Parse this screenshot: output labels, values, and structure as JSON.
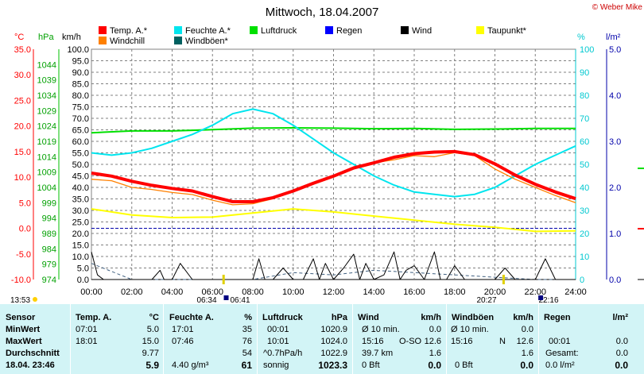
{
  "title": "Mittwoch, 18.04.2007",
  "copyright": "© Weber Mike",
  "axis_units": {
    "temp": "°C",
    "pressure": "hPa",
    "wind": "km/h",
    "humidity": "%",
    "rain": "l/m²"
  },
  "legend": [
    {
      "label": "Temp. A.*",
      "color": "#ff0000"
    },
    {
      "label": "Feuchte A.*",
      "color": "#00e5ee"
    },
    {
      "label": "Luftdruck",
      "color": "#00e000"
    },
    {
      "label": "Regen",
      "color": "#0000ff"
    },
    {
      "label": "Wind",
      "color": "#000000"
    },
    {
      "label": "Taupunkt*",
      "color": "#ffff00"
    },
    {
      "label": "Windchill",
      "color": "#ff8000"
    },
    {
      "label": "Windböen*",
      "color": "#006060"
    }
  ],
  "chart_data": {
    "type": "line",
    "title": "Mittwoch, 18.04.2007",
    "x_tick_labels": [
      "00:00",
      "02:00",
      "04:00",
      "06:00",
      "08:00",
      "10:00",
      "12:00",
      "14:00",
      "16:00",
      "18:00",
      "20:00",
      "22:00",
      "24:00"
    ],
    "axes": {
      "temp": {
        "unit": "°C",
        "range": [
          -10,
          35
        ],
        "ticks": [
          "35.0",
          "30.0",
          "25.0",
          "20.0",
          "15.0",
          "10.0",
          "5.0",
          "0.0",
          "-5.0",
          "-10.0"
        ]
      },
      "pressure": {
        "unit": "hPa",
        "range": [
          974,
          1049
        ],
        "ticks": [
          "1044",
          "1039",
          "1034",
          "1029",
          "1024",
          "1019",
          "1014",
          "1009",
          "1004",
          "999",
          "994",
          "989",
          "984",
          "979",
          "974"
        ]
      },
      "wind": {
        "unit": "km/h",
        "range": [
          0,
          100
        ],
        "ticks": [
          "100.0",
          "95.0",
          "90.0",
          "85.0",
          "80.0",
          "75.0",
          "70.0",
          "65.0",
          "60.0",
          "55.0",
          "50.0",
          "45.0",
          "40.0",
          "35.0",
          "30.0",
          "25.0",
          "20.0",
          "15.0",
          "10.0",
          "5.0",
          "0.0"
        ]
      },
      "humidity": {
        "unit": "%",
        "range": [
          0,
          100
        ],
        "ticks": [
          "100",
          "90",
          "80",
          "70",
          "60",
          "50",
          "40",
          "30",
          "20",
          "10",
          "0"
        ]
      },
      "rain": {
        "unit": "l/m²",
        "range": [
          0,
          5
        ],
        "ticks": [
          "5.0",
          "4.0",
          "3.0",
          "2.0",
          "1.0",
          "0.0"
        ]
      }
    },
    "grid": true,
    "reference_line": {
      "axis": "temp",
      "value": 0,
      "style": "dashed",
      "color": "#0000aa"
    },
    "series": [
      {
        "name": "Temp. A.*",
        "axis": "temp",
        "color": "#ff0000",
        "x": [
          0,
          1,
          2,
          3,
          4,
          5,
          6,
          7,
          8,
          9,
          10,
          11,
          12,
          13,
          14,
          15,
          16,
          17,
          18,
          19,
          20,
          21,
          22,
          23,
          24
        ],
        "y": [
          10.8,
          10.2,
          9.2,
          8.4,
          7.8,
          7.3,
          6.2,
          5.2,
          5.2,
          6.0,
          7.3,
          8.8,
          10.2,
          11.8,
          12.8,
          13.9,
          14.6,
          14.9,
          15.0,
          14.4,
          12.6,
          10.4,
          8.6,
          7.1,
          5.8
        ]
      },
      {
        "name": "Windchill",
        "axis": "temp",
        "color": "#ff8000",
        "x": [
          0,
          1,
          2,
          3,
          4,
          5,
          6,
          7,
          8,
          9,
          10,
          11,
          12,
          13,
          14,
          15,
          16,
          17,
          18,
          19,
          20,
          21,
          22,
          23,
          24
        ],
        "y": [
          9.6,
          9.3,
          8.0,
          7.6,
          7.0,
          6.6,
          5.5,
          4.6,
          4.8,
          5.8,
          7.2,
          8.6,
          10.0,
          11.6,
          12.8,
          13.4,
          14.2,
          14.0,
          14.8,
          14.2,
          11.6,
          9.6,
          8.0,
          6.4,
          5.0
        ]
      },
      {
        "name": "Feuchte A.*",
        "axis": "humidity",
        "color": "#00e5ee",
        "x": [
          0,
          1,
          2,
          3,
          4,
          5,
          6,
          7,
          8,
          9,
          10,
          11,
          12,
          13,
          14,
          15,
          16,
          17,
          18,
          19,
          20,
          21,
          22,
          23,
          24
        ],
        "y": [
          55,
          54,
          55,
          57,
          60,
          63,
          67,
          72,
          74,
          72,
          67,
          61,
          55,
          50,
          45,
          41,
          38,
          37,
          36,
          37,
          40,
          45,
          50,
          54,
          58
        ]
      },
      {
        "name": "Luftdruck",
        "axis": "pressure",
        "color": "#00e000",
        "x": [
          0,
          2,
          4,
          6,
          8,
          10,
          12,
          14,
          16,
          18,
          20,
          22,
          24
        ],
        "y": [
          1021.8,
          1022.4,
          1022.4,
          1022.8,
          1023.3,
          1023.4,
          1023.3,
          1023.1,
          1023.2,
          1022.9,
          1023.0,
          1023.2,
          1023.2
        ]
      },
      {
        "name": "Taupunkt*",
        "axis": "temp",
        "color": "#ffff00",
        "x": [
          0,
          2,
          4,
          6,
          8,
          10,
          12,
          14,
          16,
          18,
          20,
          22,
          24
        ],
        "y": [
          3.8,
          2.6,
          2.1,
          2.2,
          3.0,
          3.8,
          3.2,
          2.4,
          1.6,
          0.8,
          0.2,
          -0.6,
          -0.5
        ]
      },
      {
        "name": "Wind",
        "axis": "wind",
        "color": "#000000",
        "x": [
          0,
          0.3,
          0.6,
          1,
          2,
          3,
          3.4,
          3.6,
          4,
          4.4,
          5,
          5.5,
          6,
          6.5,
          7,
          7.5,
          8,
          8.3,
          8.6,
          9,
          9.5,
          10,
          10.5,
          11,
          11.3,
          11.6,
          12,
          12.5,
          13,
          13.3,
          13.6,
          14,
          14.5,
          15,
          15.3,
          15.6,
          16,
          16.5,
          17,
          17.3,
          17.6,
          18,
          18.5,
          19,
          19.5,
          20,
          20.5,
          21,
          21.5,
          22,
          22.5,
          23,
          24
        ],
        "y": [
          12,
          2,
          0,
          0,
          0,
          0,
          4,
          0,
          0,
          7,
          0,
          0,
          0,
          0,
          0,
          0,
          0,
          9,
          0,
          0,
          5,
          0,
          0,
          9,
          0,
          7,
          0,
          5,
          11,
          0,
          7,
          0,
          2,
          12,
          0,
          4,
          6,
          0,
          12,
          0,
          0,
          6,
          0,
          0,
          0,
          0,
          5,
          0,
          0,
          0,
          9,
          0,
          0
        ]
      },
      {
        "name": "Windböen*",
        "axis": "wind",
        "color": "#406080",
        "x": [
          0,
          2,
          4,
          6,
          8,
          10,
          12,
          14,
          16,
          18,
          20,
          22,
          24
        ],
        "y": [
          7,
          0,
          0,
          0,
          0,
          3,
          2,
          4,
          3,
          2,
          1,
          0,
          0
        ]
      }
    ],
    "annotations": [
      {
        "label": "06:34",
        "type": "sunrise"
      },
      {
        "label": "06:41",
        "type": "moonrise"
      },
      {
        "label": "20:27",
        "type": "sunset"
      },
      {
        "label": "22:16",
        "type": "moonset"
      },
      {
        "label": "13:53",
        "type": "sun"
      }
    ]
  },
  "stats": {
    "row_labels": [
      "Sensor",
      "MinWert",
      "MaxWert",
      "Durchschnitt",
      "18.04. 23:46"
    ],
    "temp": {
      "header": "Temp. A.",
      "unit": "°C",
      "min_time": "07:01",
      "min": "5.0",
      "max_time": "18:01",
      "max": "15.0",
      "avg": "9.77",
      "current": "5.9"
    },
    "humidity": {
      "header": "Feuchte A.",
      "unit": "%",
      "min_time": "17:01",
      "min": "35",
      "max_time": "07:46",
      "max": "76",
      "avg": "54",
      "abs": "4.40 g/m³",
      "current": "61"
    },
    "pressure": {
      "header": "Luftdruck",
      "unit": "hPa",
      "min_time": "00:01",
      "min": "1020.9",
      "max_time": "10:01",
      "max": "1024.0",
      "trend": "^0.7hPa/h",
      "avg": "1022.9",
      "state": "sonnig",
      "current": "1023.3"
    },
    "wind": {
      "header": "Wind",
      "unit": "km/h",
      "min_label": "Ø 10 min.",
      "min": "0.0",
      "max_time": "15:16",
      "max_dir": "O-SO",
      "max": "12.6",
      "avg_run": "39.7 km",
      "avg": "1.6",
      "bft": "0 Bft",
      "current": "0.0"
    },
    "gust": {
      "header": "Windböen",
      "unit": "km/h",
      "min_label": "Ø 10 min.",
      "min": "0.0",
      "max_time": "15:16",
      "max_dir": "N",
      "max": "12.6",
      "avg": "1.6",
      "bft": "0 Bft",
      "current": "0.0"
    },
    "rain": {
      "header": "Regen",
      "unit": "l/m²",
      "max_time": "00:01",
      "max": "0.0",
      "total_label": "Gesamt:",
      "total": "0.0",
      "rate": "0.0 l/m²",
      "current": "0.0"
    }
  }
}
